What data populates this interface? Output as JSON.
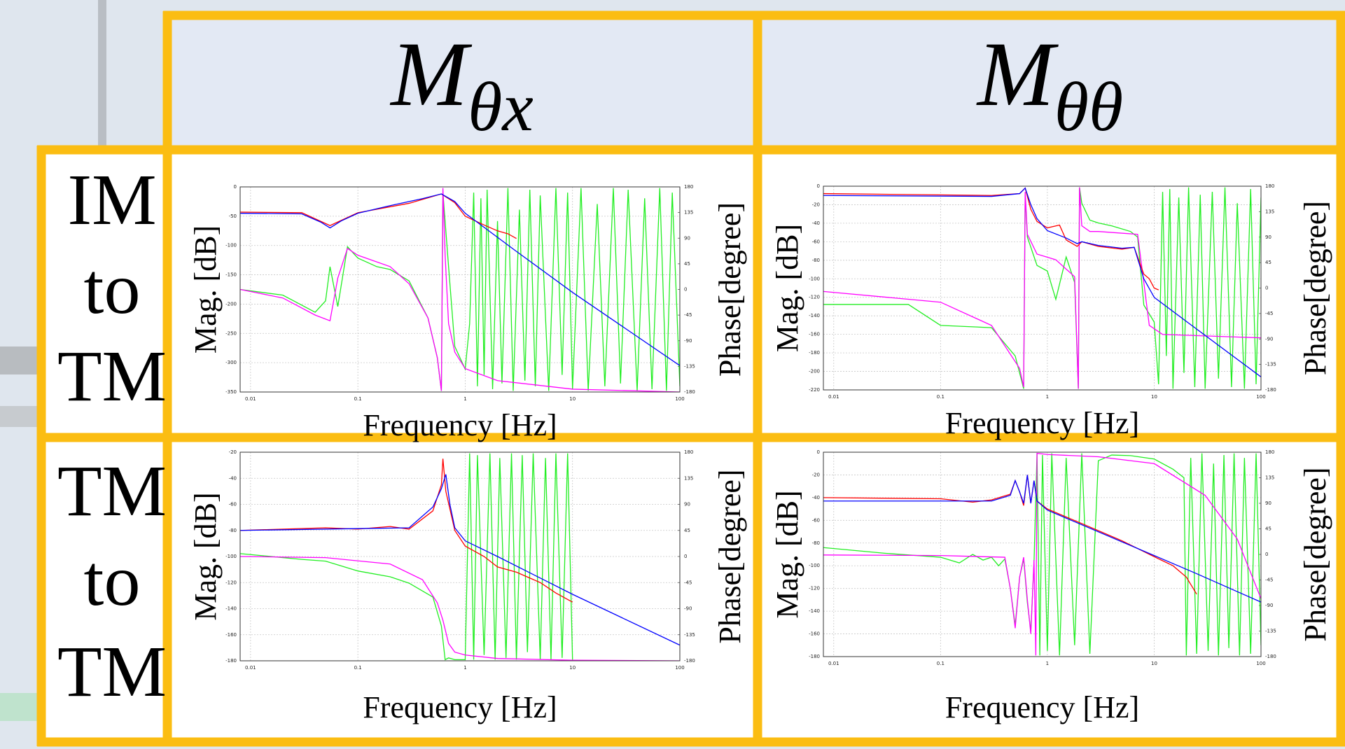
{
  "header": {
    "columns": [
      {
        "symbol": "M",
        "subscript": "θx"
      },
      {
        "symbol": "M",
        "subscript": "θθ"
      }
    ]
  },
  "rows": [
    {
      "lines": [
        "IM",
        "to",
        "TM"
      ]
    },
    {
      "lines": [
        "TM",
        "to",
        "TM"
      ]
    }
  ],
  "chart_data": [
    {
      "type": "line",
      "xlabel": "Frequency [Hz]",
      "ylabel": "Mag. [dB]",
      "y2label": "Phase[degree]",
      "xlog": true,
      "grid": true,
      "xlim": [
        0.008,
        100
      ],
      "xticks": [
        0.01,
        0.1,
        1,
        10,
        100
      ],
      "ylim": [
        -350,
        0
      ],
      "yticks": [
        0,
        -50,
        -100,
        -150,
        -200,
        -250,
        -300,
        -350
      ],
      "y2lim": [
        -180,
        180
      ],
      "y2ticks": [
        180,
        135,
        90,
        45,
        0,
        -45,
        -90,
        -135,
        -180
      ],
      "series": [
        {
          "color": "#22ee22",
          "axis": "y2",
          "x": [
            0.008,
            0.02,
            0.04,
            0.05,
            0.055,
            0.065,
            0.08,
            0.1,
            0.15,
            0.2,
            0.3,
            0.45,
            0.55,
            0.6,
            0.62,
            0.7,
            0.8,
            1,
            1.1,
            1.2,
            1.3,
            1.4,
            1.5,
            1.6,
            1.8,
            2,
            2.2,
            2.5,
            2.8,
            3.2,
            3.6,
            4,
            4.5,
            5,
            6,
            7,
            8,
            9,
            10,
            12,
            14,
            17,
            20,
            24,
            28,
            33,
            40,
            47,
            55,
            65,
            75,
            85,
            100
          ],
          "values": [
            0,
            -10,
            -40,
            -20,
            40,
            -30,
            75,
            55,
            40,
            35,
            15,
            -50,
            -120,
            -178,
            170,
            40,
            -100,
            -140,
            -60,
            170,
            -170,
            160,
            -150,
            175,
            -175,
            120,
            -165,
            178,
            -178,
            140,
            -160,
            175,
            -170,
            165,
            -178,
            178,
            -150,
            170,
            -175,
            178,
            -178,
            150,
            -170,
            178,
            -165,
            175,
            -178,
            160,
            -175,
            178,
            -178,
            170,
            -170
          ]
        },
        {
          "color": "#ff00ff",
          "axis": "y2",
          "x": [
            0.008,
            0.02,
            0.04,
            0.055,
            0.065,
            0.08,
            0.1,
            0.2,
            0.3,
            0.45,
            0.55,
            0.6,
            0.62,
            0.65,
            0.7,
            0.8,
            1,
            2,
            10,
            100
          ],
          "values": [
            0,
            -15,
            -45,
            -55,
            20,
            72,
            60,
            40,
            10,
            -50,
            -120,
            -178,
            178,
            60,
            -60,
            -110,
            -139,
            -160,
            -175,
            -180
          ]
        },
        {
          "color": "#ff0000",
          "x": [
            0.008,
            0.03,
            0.055,
            0.1,
            0.3,
            0.6,
            0.8,
            1,
            1.5,
            2,
            2.5,
            3
          ],
          "values": [
            -43,
            -44,
            -66,
            -44,
            -28,
            -12,
            -27,
            -50,
            -65,
            -75,
            -80,
            -88
          ]
        },
        {
          "color": "#0000ff",
          "x": [
            0.008,
            0.03,
            0.045,
            0.055,
            0.07,
            0.1,
            0.2,
            0.4,
            0.6,
            0.8,
            1,
            3,
            10,
            100
          ],
          "values": [
            -45,
            -46,
            -60,
            -70,
            -58,
            -45,
            -32,
            -20,
            -12,
            -25,
            -45,
            -110,
            -180,
            -305
          ]
        }
      ]
    },
    {
      "type": "line",
      "xlabel": "Frequency [Hz]",
      "ylabel": "Mag. [dB]",
      "y2label": "Phase[degree]",
      "xlog": true,
      "grid": true,
      "xlim": [
        0.008,
        100
      ],
      "xticks": [
        0.01,
        0.1,
        1,
        10,
        100
      ],
      "ylim": [
        -220,
        0
      ],
      "yticks": [
        0,
        -20,
        -40,
        -60,
        -80,
        -100,
        -120,
        -140,
        -160,
        -180,
        -200,
        -220
      ],
      "y2lim": [
        -180,
        180
      ],
      "y2ticks": [
        180,
        135,
        90,
        45,
        0,
        -45,
        -90,
        -135,
        -180
      ],
      "series": [
        {
          "color": "#22ee22",
          "axis": "y2",
          "x": [
            0.008,
            0.05,
            0.1,
            0.3,
            0.5,
            0.6,
            0.62,
            0.65,
            0.8,
            1,
            1.2,
            1.5,
            1.8,
            1.95,
            2,
            2.1,
            2.5,
            3,
            4,
            6,
            7,
            8,
            10,
            11,
            12,
            13,
            14,
            15,
            17,
            19,
            21,
            24,
            27,
            30,
            35,
            40,
            46,
            53,
            60,
            70,
            80,
            90,
            100
          ],
          "values": [
            -29,
            -29,
            -66,
            -70,
            -120,
            -178,
            165,
            90,
            40,
            30,
            -20,
            55,
            10,
            -178,
            178,
            150,
            120,
            115,
            110,
            100,
            90,
            -30,
            -60,
            -170,
            170,
            -120,
            175,
            -178,
            160,
            -150,
            178,
            -175,
            165,
            -178,
            170,
            -160,
            178,
            -175,
            150,
            -178,
            175,
            -170,
            160
          ]
        },
        {
          "color": "#ff00ff",
          "axis": "y2",
          "x": [
            0.008,
            0.1,
            0.3,
            0.55,
            0.6,
            0.62,
            0.65,
            0.8,
            1.2,
            1.8,
            1.95,
            2,
            2.1,
            2.5,
            3,
            7,
            9,
            12,
            100
          ],
          "values": [
            -6,
            -25,
            -66,
            -142,
            -175,
            170,
            95,
            60,
            50,
            20,
            -178,
            178,
            110,
            100,
            100,
            95,
            -66,
            -82,
            -88
          ]
        },
        {
          "color": "#ff0000",
          "x": [
            0.008,
            0.3,
            0.55,
            0.62,
            0.7,
            0.8,
            1,
            1.3,
            1.5,
            1.9,
            2.1,
            3,
            5,
            6.5,
            8,
            9,
            10,
            11
          ],
          "values": [
            -8,
            -10,
            -8,
            -2,
            -25,
            -38,
            -45,
            -42,
            -58,
            -65,
            -60,
            -65,
            -68,
            -66,
            -95,
            -100,
            -110,
            -112
          ]
        },
        {
          "color": "#0000ff",
          "x": [
            0.008,
            0.3,
            0.55,
            0.62,
            0.7,
            0.8,
            1,
            1.5,
            1.9,
            2.1,
            3,
            5,
            6.5,
            8,
            10,
            20,
            100
          ],
          "values": [
            -10,
            -11,
            -8,
            -2,
            -20,
            -35,
            -48,
            -56,
            -62,
            -60,
            -64,
            -67,
            -66,
            -100,
            -120,
            -146,
            -206
          ]
        }
      ]
    },
    {
      "type": "line",
      "xlabel": "Frequency [Hz]",
      "ylabel": "Mag. [dB]",
      "y2label": "Phase[degree]",
      "xlog": true,
      "grid": true,
      "xlim": [
        0.008,
        100
      ],
      "xticks": [
        0.01,
        0.1,
        1,
        10,
        100
      ],
      "ylim": [
        -180,
        -20
      ],
      "yticks": [
        -20,
        -40,
        -60,
        -80,
        -100,
        -120,
        -140,
        -160,
        -180
      ],
      "y2lim": [
        -180,
        180
      ],
      "y2ticks": [
        180,
        135,
        90,
        45,
        0,
        -45,
        -90,
        -135,
        -180
      ],
      "series": [
        {
          "color": "#22ee22",
          "axis": "y2",
          "x": [
            0.008,
            0.03,
            0.05,
            0.1,
            0.2,
            0.3,
            0.5,
            0.6,
            0.65,
            0.7,
            0.8,
            1,
            1.1,
            1.2,
            1.3,
            1.5,
            1.7,
            1.9,
            2.1,
            2.4,
            2.7,
            3,
            3.4,
            3.8,
            4.3,
            5,
            5.6,
            6.3,
            7,
            8,
            9,
            10
          ],
          "values": [
            5,
            -5,
            -8,
            -25,
            -35,
            -46,
            -70,
            -120,
            -178,
            -175,
            -178,
            -178,
            178,
            -178,
            175,
            -170,
            178,
            -178,
            170,
            -175,
            178,
            -178,
            175,
            -165,
            178,
            -178,
            170,
            -178,
            178,
            -175,
            178,
            -178
          ]
        },
        {
          "color": "#ff00ff",
          "axis": "y2",
          "x": [
            0.008,
            0.05,
            0.2,
            0.4,
            0.55,
            0.62,
            0.7,
            0.8,
            1,
            2,
            10,
            100
          ],
          "values": [
            0,
            -2,
            -13,
            -40,
            -80,
            -110,
            -150,
            -165,
            -170,
            -176,
            -179,
            -180
          ]
        },
        {
          "color": "#ff0000",
          "x": [
            0.008,
            0.05,
            0.1,
            0.2,
            0.3,
            0.5,
            0.6,
            0.62,
            0.66,
            0.8,
            1,
            1.5,
            2,
            3,
            5,
            7,
            10
          ],
          "values": [
            -80,
            -78,
            -79,
            -77,
            -79,
            -65,
            -45,
            -25,
            -50,
            -80,
            -92,
            -100,
            -108,
            -112,
            -120,
            -128,
            -135
          ]
        },
        {
          "color": "#0000ff",
          "x": [
            0.008,
            0.3,
            0.5,
            0.6,
            0.66,
            0.72,
            0.8,
            1,
            2,
            10,
            100
          ],
          "values": [
            -80,
            -78,
            -62,
            -48,
            -37,
            -60,
            -78,
            -88,
            -100,
            -129,
            -168
          ]
        }
      ]
    },
    {
      "type": "line",
      "xlabel": "Frequency [Hz]",
      "ylabel": "Mag. [dB]",
      "y2label": "Phase[degree]",
      "xlog": true,
      "grid": true,
      "xlim": [
        0.008,
        100
      ],
      "xticks": [
        0.01,
        0.1,
        1,
        10,
        100
      ],
      "ylim": [
        -180,
        0
      ],
      "yticks": [
        0,
        -20,
        -40,
        -60,
        -80,
        -100,
        -120,
        -140,
        -160,
        -180
      ],
      "y2lim": [
        -180,
        180
      ],
      "y2ticks": [
        180,
        135,
        90,
        45,
        0,
        -45,
        -90,
        -135,
        -180
      ],
      "series": [
        {
          "color": "#22ee22",
          "axis": "y2",
          "x": [
            0.008,
            0.03,
            0.1,
            0.15,
            0.2,
            0.25,
            0.3,
            0.35,
            0.4,
            0.45,
            0.5,
            0.55,
            0.6,
            0.65,
            0.7,
            0.75,
            0.8,
            0.85,
            0.9,
            1,
            1.1,
            1.3,
            1.5,
            1.8,
            2.1,
            2.5,
            3,
            4,
            6,
            10,
            15,
            19,
            20,
            22,
            25,
            28,
            32,
            36,
            40,
            45,
            50,
            56,
            63,
            70,
            80,
            90,
            100
          ],
          "values": [
            12,
            2,
            -5,
            -15,
            0,
            -10,
            -5,
            -20,
            -8,
            -60,
            -125,
            -40,
            -8,
            -85,
            -135,
            -15,
            178,
            -178,
            175,
            -170,
            178,
            -178,
            170,
            -160,
            178,
            -175,
            165,
            175,
            174,
            168,
            150,
            135,
            -178,
            170,
            -175,
            178,
            -170,
            160,
            -178,
            175,
            -165,
            178,
            -178,
            170,
            -175,
            178,
            -160
          ]
        },
        {
          "color": "#ff00ff",
          "axis": "y2",
          "x": [
            0.008,
            0.1,
            0.4,
            0.45,
            0.5,
            0.55,
            0.6,
            0.65,
            0.7,
            0.75,
            0.78,
            0.8,
            1,
            3,
            10,
            30,
            60,
            100
          ],
          "values": [
            -1,
            -2,
            -5,
            -60,
            -130,
            -40,
            -5,
            -80,
            -140,
            -10,
            -178,
            178,
            176,
            172,
            160,
            104,
            27,
            -78
          ]
        },
        {
          "color": "#ff0000",
          "x": [
            0.008,
            0.1,
            0.2,
            0.3,
            0.45,
            0.5,
            0.55,
            0.6,
            0.65,
            0.7,
            0.75,
            0.8,
            1,
            2,
            5,
            10,
            15,
            20,
            25
          ],
          "values": [
            -40,
            -41,
            -44,
            -42,
            -37,
            -25,
            -35,
            -47,
            -20,
            -45,
            -25,
            -43,
            -50,
            -62,
            -78,
            -92,
            -100,
            -110,
            -125
          ]
        },
        {
          "color": "#0000ff",
          "x": [
            0.008,
            0.3,
            0.45,
            0.5,
            0.55,
            0.6,
            0.65,
            0.7,
            0.75,
            0.8,
            1,
            10,
            25,
            100
          ],
          "values": [
            -43,
            -43,
            -38,
            -25,
            -35,
            -45,
            -20,
            -45,
            -25,
            -43,
            -51,
            -91,
            -107,
            -132
          ]
        }
      ]
    }
  ]
}
